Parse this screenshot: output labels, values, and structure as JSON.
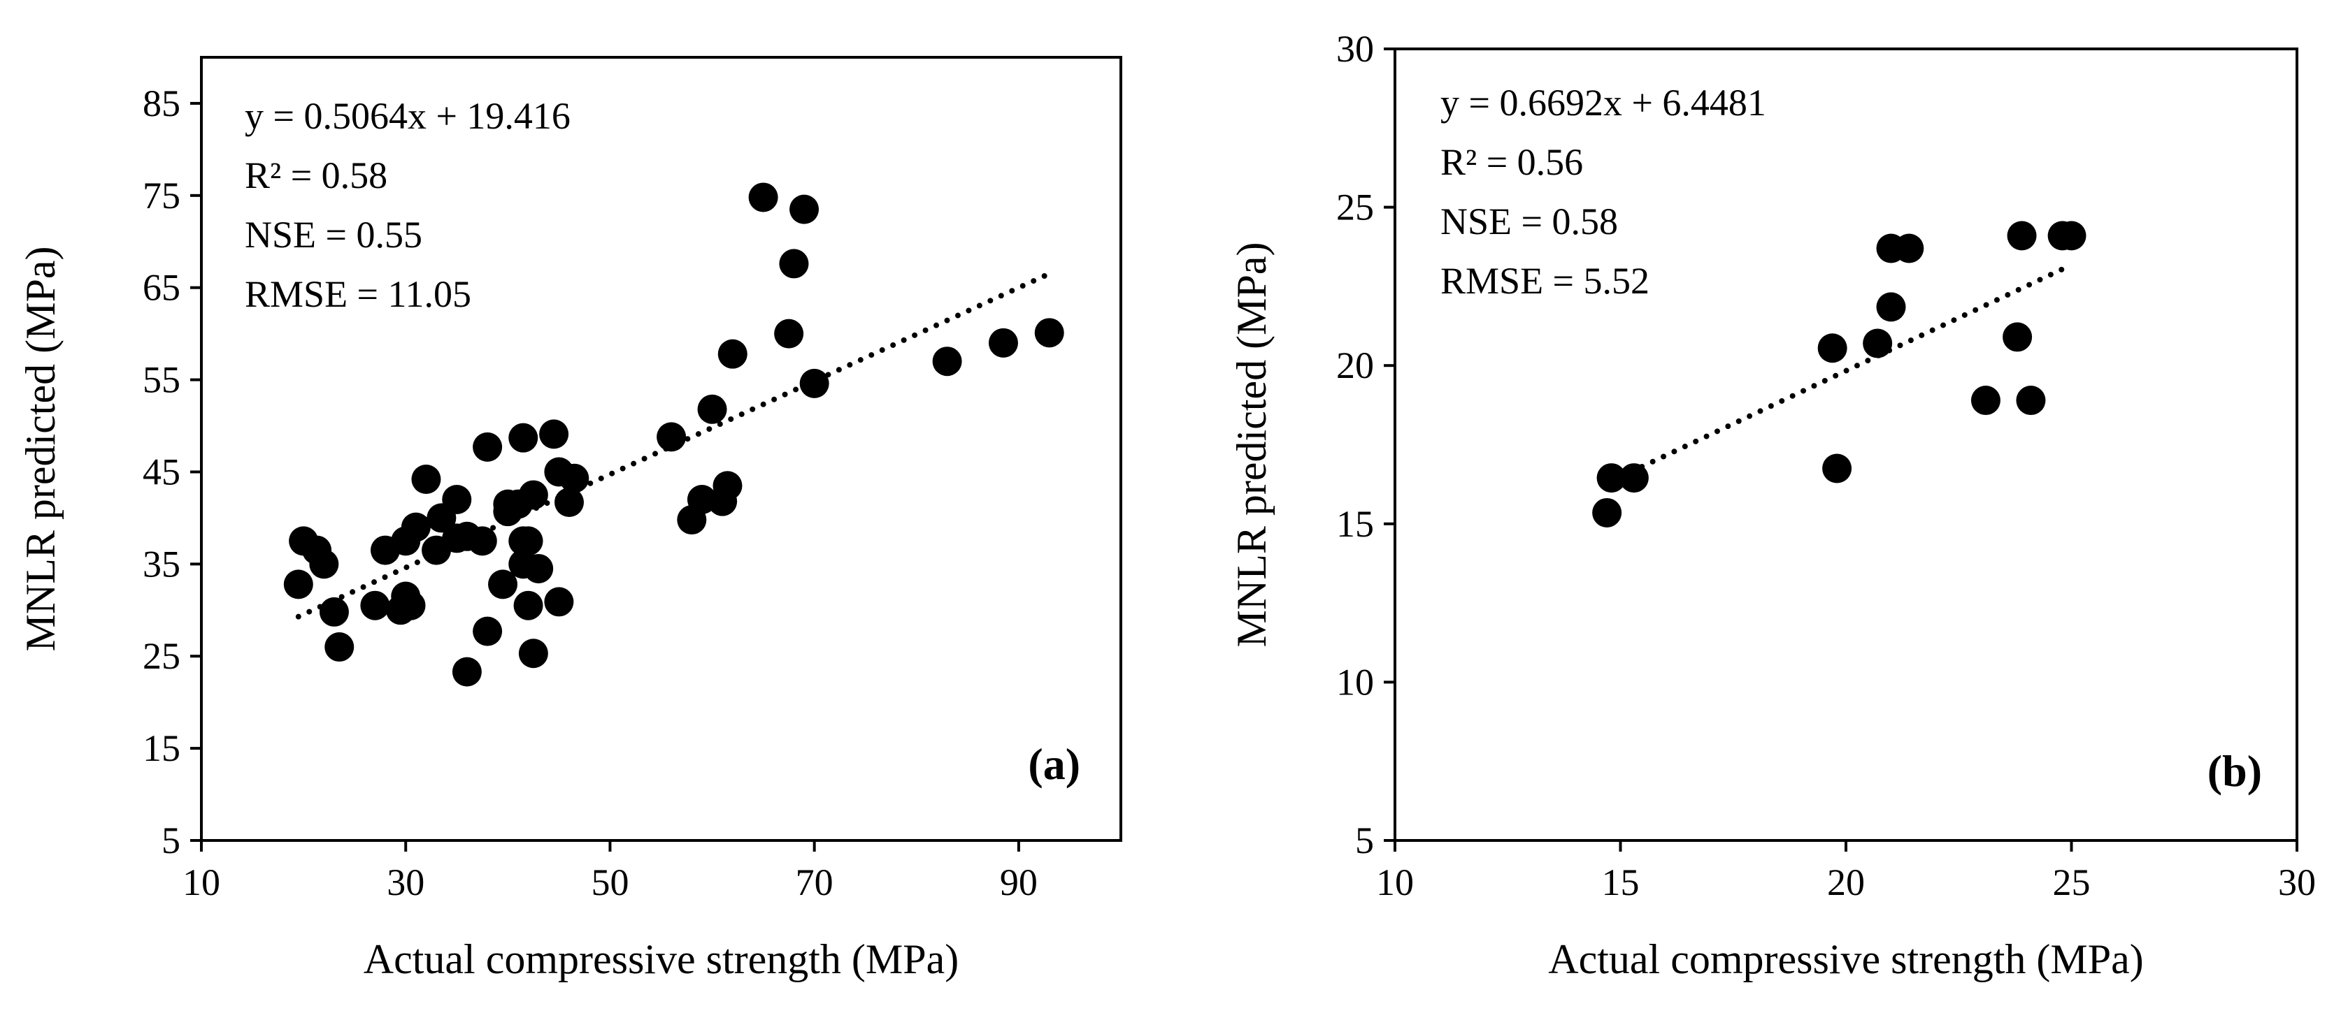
{
  "chart_data": [
    {
      "type": "scatter",
      "panel_label": "(a)",
      "xlabel": "Actual compressive strength (MPa)",
      "ylabel": "MNLR predicted (MPa)",
      "xlim": [
        10,
        100
      ],
      "ylim": [
        5,
        90
      ],
      "xticks": [
        10,
        30,
        50,
        70,
        90
      ],
      "yticks": [
        5,
        15,
        25,
        35,
        45,
        55,
        65,
        75,
        85
      ],
      "annotations": [
        "y = 0.5064x + 19.416",
        "R² = 0.58",
        "NSE = 0.55",
        "RMSE = 11.05"
      ],
      "trendline": {
        "style": "dotted",
        "slope": 0.5064,
        "intercept": 19.416,
        "x_range": [
          19.5,
          93
        ]
      },
      "points": [
        [
          19.5,
          32.8
        ],
        [
          20,
          37.5
        ],
        [
          21.3,
          36.5
        ],
        [
          22,
          35
        ],
        [
          23,
          29.8
        ],
        [
          23.5,
          26
        ],
        [
          27,
          30.5
        ],
        [
          28,
          36.5
        ],
        [
          29.5,
          30
        ],
        [
          30,
          31.5
        ],
        [
          30.5,
          30.5
        ],
        [
          30,
          37.5
        ],
        [
          31,
          39
        ],
        [
          32,
          44.2
        ],
        [
          33,
          36.5
        ],
        [
          33.5,
          40
        ],
        [
          35,
          42
        ],
        [
          35,
          37.8
        ],
        [
          36,
          38
        ],
        [
          36,
          23.3
        ],
        [
          37.5,
          37.5
        ],
        [
          38,
          27.7
        ],
        [
          38,
          47.7
        ],
        [
          39.5,
          32.8
        ],
        [
          40,
          41.5
        ],
        [
          40,
          40.7
        ],
        [
          41,
          41.5
        ],
        [
          41.5,
          35
        ],
        [
          41.5,
          37.5
        ],
        [
          41.5,
          48.7
        ],
        [
          42,
          30.5
        ],
        [
          42,
          37.5
        ],
        [
          42.5,
          42.5
        ],
        [
          42.5,
          25.3
        ],
        [
          43,
          34.5
        ],
        [
          44.5,
          49.1
        ],
        [
          45,
          45
        ],
        [
          45,
          30.9
        ],
        [
          46,
          41.7
        ],
        [
          46.5,
          44.3
        ],
        [
          56,
          48.8
        ],
        [
          58,
          39.8
        ],
        [
          59,
          42
        ],
        [
          60,
          51.8
        ],
        [
          61,
          41.8
        ],
        [
          61.5,
          43.5
        ],
        [
          62,
          57.8
        ],
        [
          65,
          74.8
        ],
        [
          67.5,
          60
        ],
        [
          68,
          67.6
        ],
        [
          69,
          73.5
        ],
        [
          70,
          54.6
        ],
        [
          83,
          57
        ],
        [
          88.5,
          59
        ],
        [
          93,
          60.1
        ]
      ]
    },
    {
      "type": "scatter",
      "panel_label": "(b)",
      "xlabel": "Actual compressive strength (MPa)",
      "ylabel": "MNLR predicted (MPa)",
      "xlim": [
        10,
        30
      ],
      "ylim": [
        5,
        30
      ],
      "xticks": [
        10,
        15,
        20,
        25,
        30
      ],
      "yticks": [
        5,
        10,
        15,
        20,
        25,
        30
      ],
      "annotations": [
        "y = 0.6692x + 6.4481",
        "R² = 0.56",
        "NSE = 0.58",
        "RMSE = 5.52"
      ],
      "trendline": {
        "style": "dotted",
        "slope": 0.6692,
        "intercept": 6.4481,
        "x_range": [
          15,
          25
        ]
      },
      "points": [
        [
          14.7,
          15.35
        ],
        [
          14.8,
          16.45
        ],
        [
          15.3,
          16.45
        ],
        [
          19.7,
          20.55
        ],
        [
          19.8,
          16.75
        ],
        [
          20.7,
          20.7
        ],
        [
          21.0,
          23.7
        ],
        [
          21.0,
          21.85
        ],
        [
          21.4,
          23.7
        ],
        [
          23.1,
          18.9
        ],
        [
          23.8,
          20.9
        ],
        [
          23.9,
          24.1
        ],
        [
          24.1,
          18.9
        ],
        [
          24.8,
          24.1
        ],
        [
          25.0,
          24.1
        ]
      ]
    }
  ]
}
